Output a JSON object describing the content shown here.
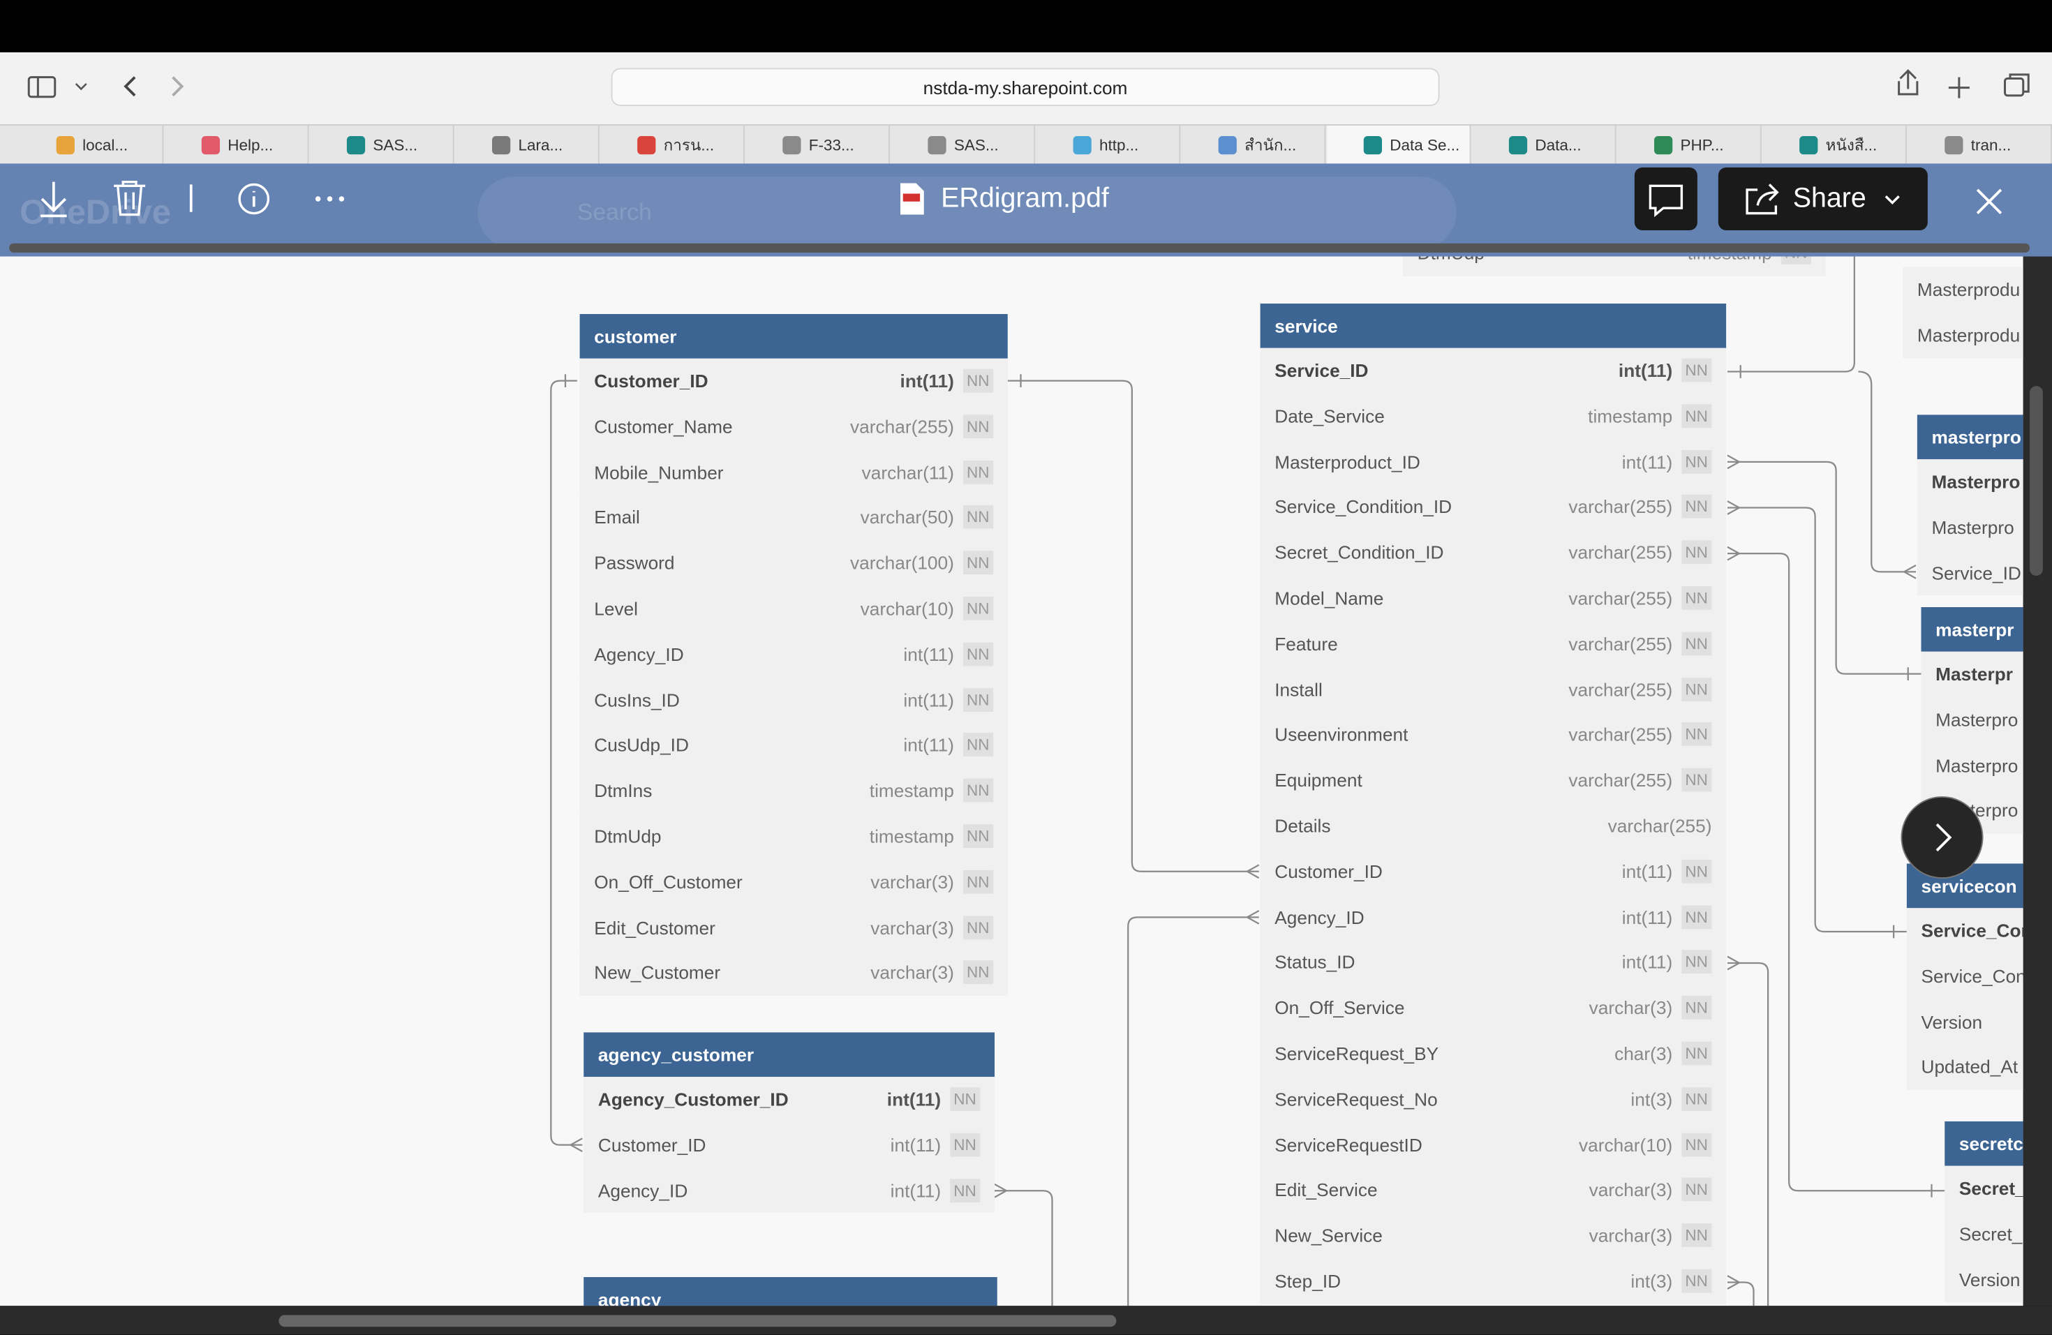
{
  "browser": {
    "url": "nstda-my.sharepoint.com",
    "tabs": [
      "local...",
      "Help...",
      "SAS...",
      "Lara...",
      "การน...",
      "F-33...",
      "SAS...",
      "http...",
      "สำนัก...",
      "Data Se...",
      "Data...",
      "PHP...",
      "หนังสื...",
      "tran..."
    ]
  },
  "viewer": {
    "app": "OneDrive",
    "search": "Search",
    "filename": "ERdigram.pdf",
    "share": "Share"
  },
  "tables": [
    {
      "name": "customer",
      "columns": [
        {
          "name": "Customer_ID",
          "type": "int(11)",
          "nn": "NN",
          "pk": true
        },
        {
          "name": "Customer_Name",
          "type": "varchar(255)",
          "nn": "NN"
        },
        {
          "name": "Mobile_Number",
          "type": "varchar(11)",
          "nn": "NN"
        },
        {
          "name": "Email",
          "type": "varchar(50)",
          "nn": "NN"
        },
        {
          "name": "Password",
          "type": "varchar(100)",
          "nn": "NN"
        },
        {
          "name": "Level",
          "type": "varchar(10)",
          "nn": "NN"
        },
        {
          "name": "Agency_ID",
          "type": "int(11)",
          "nn": "NN"
        },
        {
          "name": "CusIns_ID",
          "type": "int(11)",
          "nn": "NN"
        },
        {
          "name": "CusUdp_ID",
          "type": "int(11)",
          "nn": "NN"
        },
        {
          "name": "DtmIns",
          "type": "timestamp",
          "nn": "NN"
        },
        {
          "name": "DtmUdp",
          "type": "timestamp",
          "nn": "NN"
        },
        {
          "name": "On_Off_Customer",
          "type": "varchar(3)",
          "nn": "NN"
        },
        {
          "name": "Edit_Customer",
          "type": "varchar(3)",
          "nn": "NN"
        },
        {
          "name": "New_Customer",
          "type": "varchar(3)",
          "nn": "NN"
        }
      ]
    },
    {
      "name": "agency_customer",
      "columns": [
        {
          "name": "Agency_Customer_ID",
          "type": "int(11)",
          "nn": "NN",
          "pk": true
        },
        {
          "name": "Customer_ID",
          "type": "int(11)",
          "nn": "NN"
        },
        {
          "name": "Agency_ID",
          "type": "int(11)",
          "nn": "NN"
        }
      ]
    },
    {
      "name": "agency",
      "columns": []
    },
    {
      "name": "service",
      "columns": [
        {
          "name": "Service_ID",
          "type": "int(11)",
          "nn": "NN",
          "pk": true
        },
        {
          "name": "Date_Service",
          "type": "timestamp",
          "nn": "NN"
        },
        {
          "name": "Masterproduct_ID",
          "type": "int(11)",
          "nn": "NN"
        },
        {
          "name": "Service_Condition_ID",
          "type": "varchar(255)",
          "nn": "NN"
        },
        {
          "name": "Secret_Condition_ID",
          "type": "varchar(255)",
          "nn": "NN"
        },
        {
          "name": "Model_Name",
          "type": "varchar(255)",
          "nn": "NN"
        },
        {
          "name": "Feature",
          "type": "varchar(255)",
          "nn": "NN"
        },
        {
          "name": "Install",
          "type": "varchar(255)",
          "nn": "NN"
        },
        {
          "name": "Useenvironment",
          "type": "varchar(255)",
          "nn": "NN"
        },
        {
          "name": "Equipment",
          "type": "varchar(255)",
          "nn": "NN"
        },
        {
          "name": "Details",
          "type": "varchar(255)"
        },
        {
          "name": "Customer_ID",
          "type": "int(11)",
          "nn": "NN"
        },
        {
          "name": "Agency_ID",
          "type": "int(11)",
          "nn": "NN"
        },
        {
          "name": "Status_ID",
          "type": "int(11)",
          "nn": "NN"
        },
        {
          "name": "On_Off_Service",
          "type": "varchar(3)",
          "nn": "NN"
        },
        {
          "name": "ServiceRequest_BY",
          "type": "char(3)",
          "nn": "NN"
        },
        {
          "name": "ServiceRequest_No",
          "type": "int(3)",
          "nn": "NN"
        },
        {
          "name": "ServiceRequestID",
          "type": "varchar(10)",
          "nn": "NN"
        },
        {
          "name": "Edit_Service",
          "type": "varchar(3)",
          "nn": "NN"
        },
        {
          "name": "New_Service",
          "type": "varchar(3)",
          "nn": "NN"
        },
        {
          "name": "Step_ID",
          "type": "int(3)",
          "nn": "NN"
        }
      ]
    },
    {
      "columns": [
        {
          "name": "DtmUdp",
          "type": "timestamp",
          "nn": "NN"
        }
      ]
    },
    {
      "columns": [
        {
          "name": "Masterprodu"
        },
        {
          "name": "Masterprodu"
        }
      ]
    },
    {
      "name": "masterpro",
      "columns": [
        {
          "name": "Masterpro",
          "pk": true
        },
        {
          "name": "Masterpro"
        },
        {
          "name": "Service_ID"
        }
      ]
    },
    {
      "name": "masterpr",
      "columns": [
        {
          "name": "Masterpr",
          "pk": true
        },
        {
          "name": "Masterpro"
        },
        {
          "name": "Masterpro"
        },
        {
          "name": "Masterpro"
        }
      ]
    },
    {
      "name": "servicecon",
      "columns": [
        {
          "name": "Service_Cor",
          "pk": true
        },
        {
          "name": "Service_Con"
        },
        {
          "name": "Version"
        },
        {
          "name": "Updated_At"
        }
      ]
    },
    {
      "name": "secretc",
      "columns": [
        {
          "name": "Secret_",
          "pk": true
        },
        {
          "name": "Secret_"
        },
        {
          "name": "Version"
        }
      ]
    }
  ]
}
